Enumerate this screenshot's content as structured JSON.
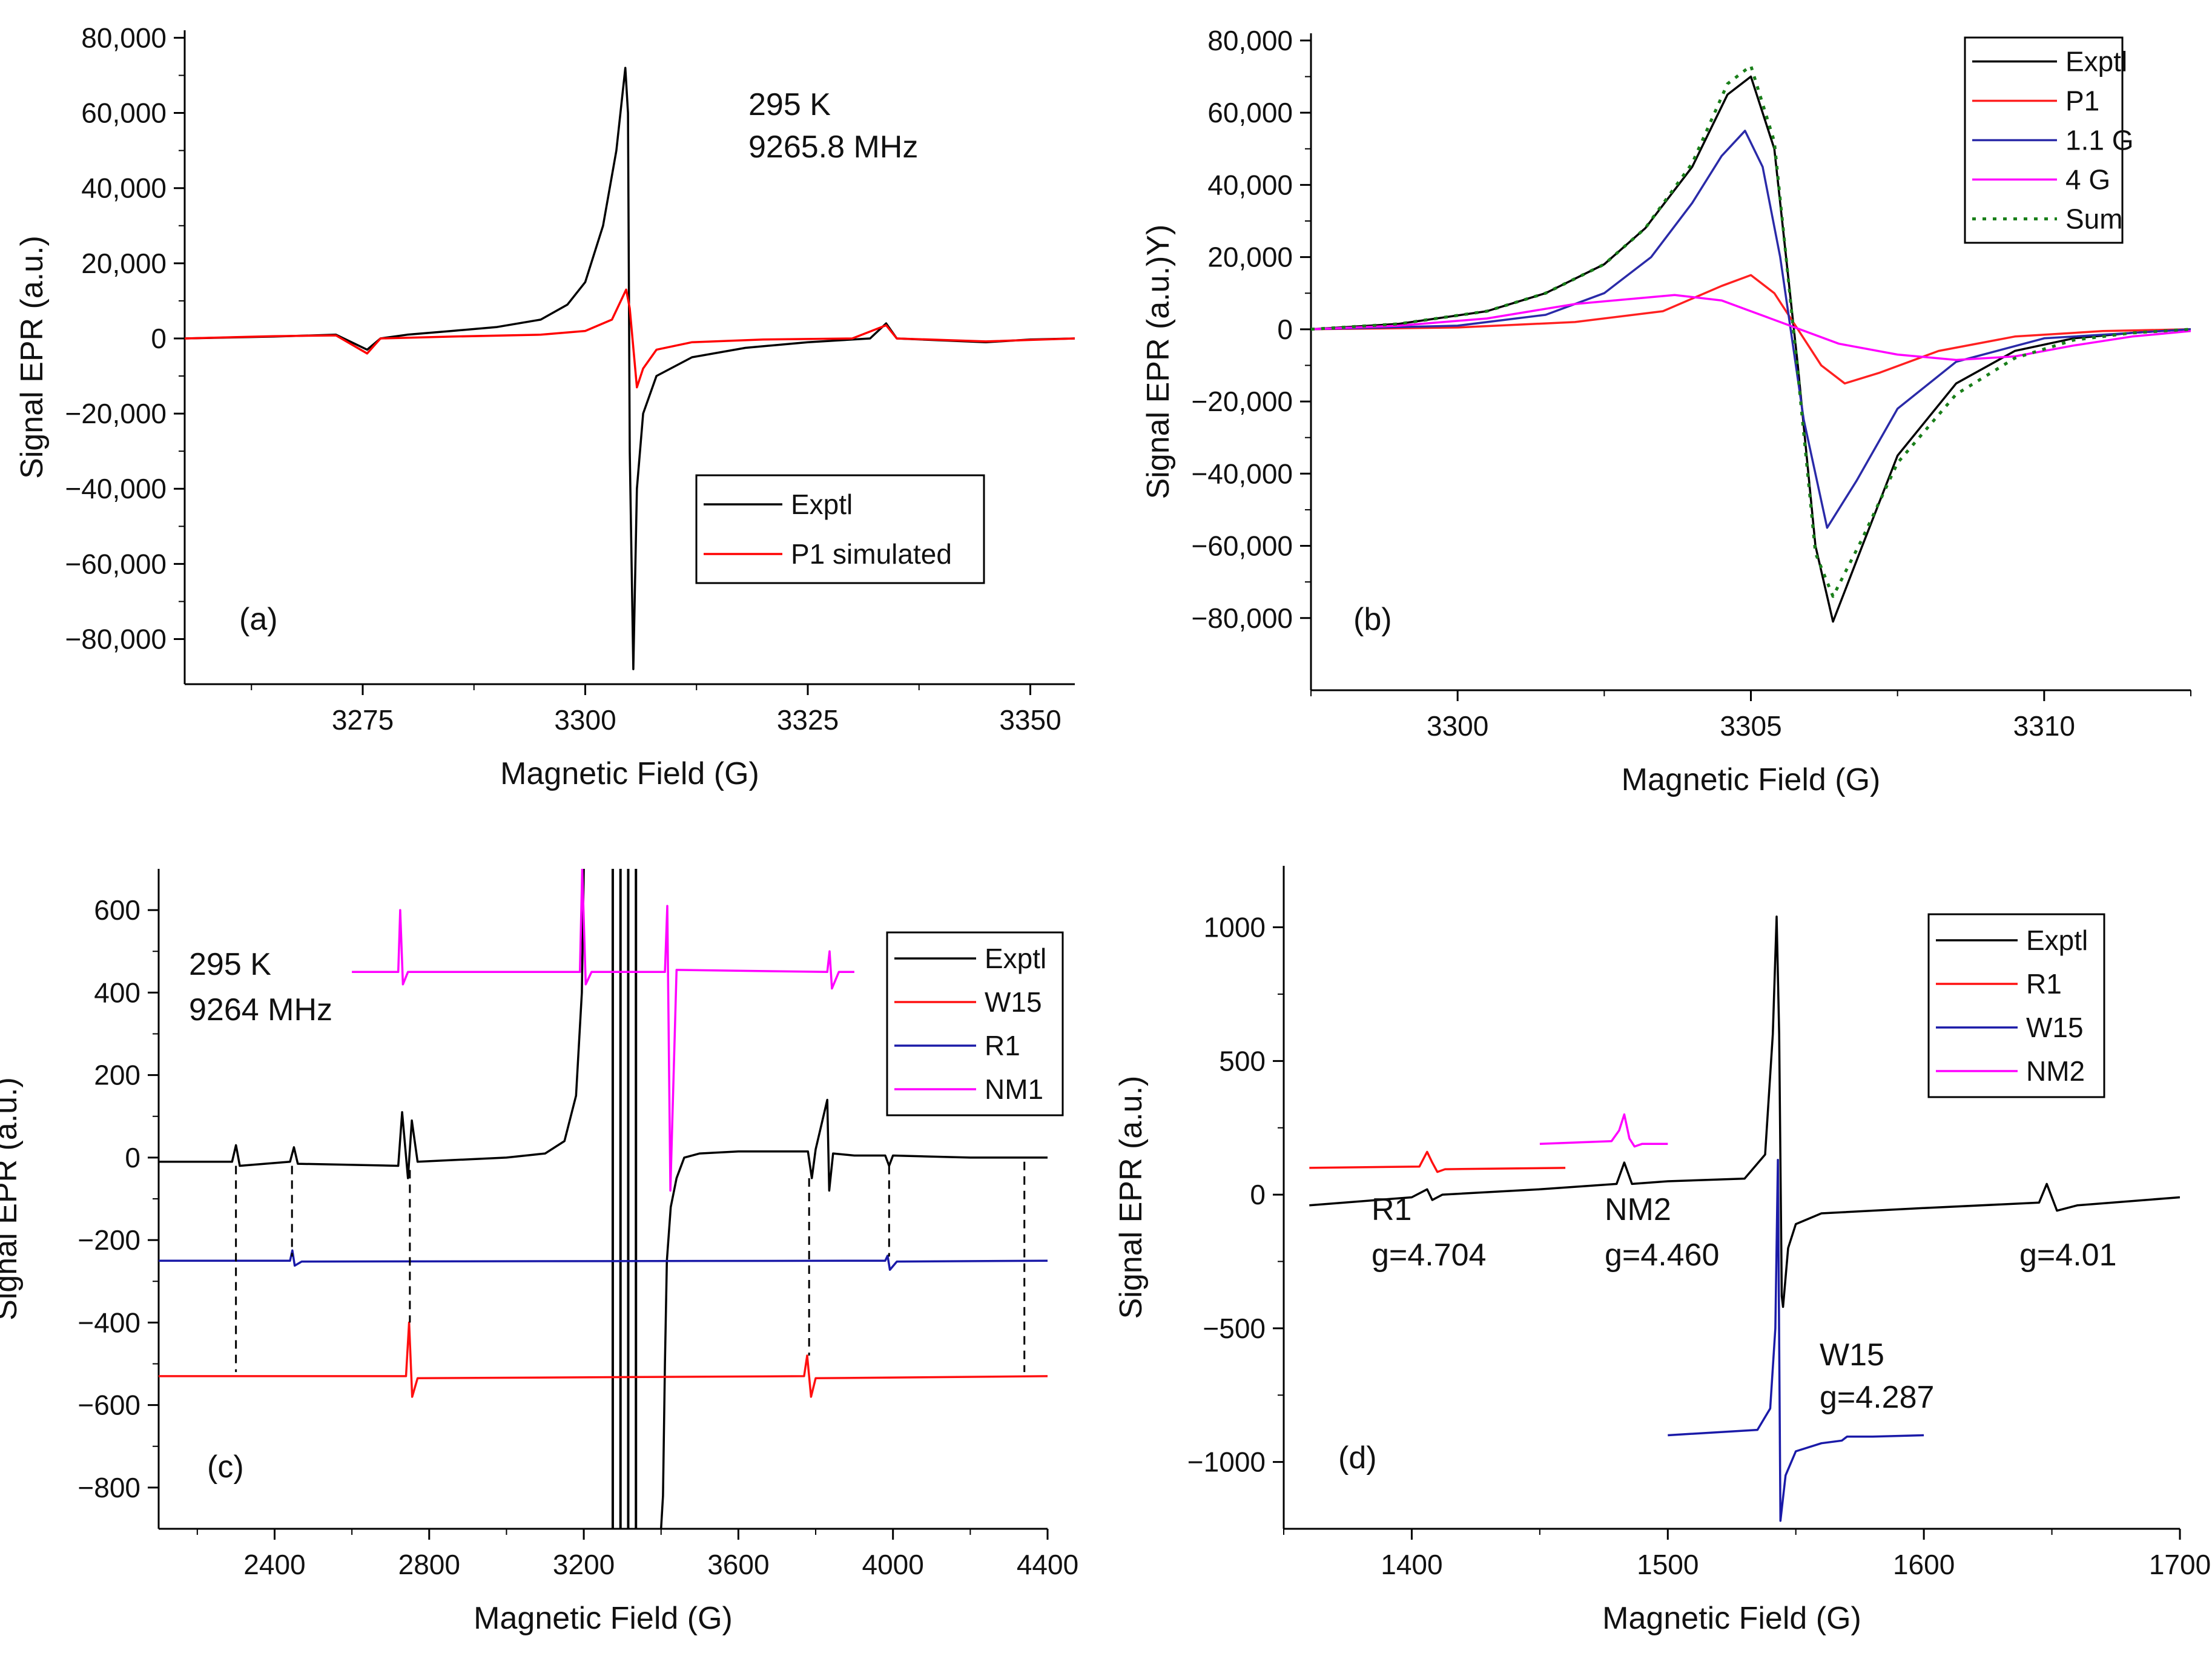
{
  "chart_data": [
    {
      "panel": "(a)",
      "type": "line",
      "xlabel": "Magnetic Field (G)",
      "ylabel": "Signal EPR (a.u.)",
      "xlim": [
        3255,
        3355
      ],
      "ylim": [
        -92000,
        82000
      ],
      "xticks": [
        3275,
        3300,
        3325,
        3350
      ],
      "xtick_labels": [
        "3275",
        "3300",
        "3325",
        "3350"
      ],
      "yticks": [
        -80000,
        -60000,
        -40000,
        -20000,
        0,
        20000,
        40000,
        60000,
        80000
      ],
      "ytick_labels": [
        "−80,000",
        "−60,000",
        "−40,000",
        "−20,000",
        "0",
        "20,000",
        "40,000",
        "60,000",
        "80,000"
      ],
      "annotations": [
        {
          "text": "295 K"
        },
        {
          "text": "9265.8 MHz"
        },
        {
          "text": "(a)"
        }
      ],
      "legend": "bottom-right",
      "series": [
        {
          "name": "Exptl",
          "color": "#000000",
          "style": "solid",
          "x": [
            3255,
            3265,
            3272,
            3275.5,
            3277,
            3280,
            3285,
            3290,
            3295,
            3298,
            3300,
            3302,
            3303.5,
            3304.5,
            3304.8,
            3305,
            3305.4,
            3305.8,
            3306.5,
            3308,
            3312,
            3318,
            3325,
            3332,
            3333.8,
            3335,
            3340,
            3345,
            3350,
            3355
          ],
          "y": [
            0,
            500,
            1000,
            -3000,
            0,
            1000,
            2000,
            3000,
            5000,
            9000,
            15000,
            30000,
            50000,
            72000,
            60000,
            -30000,
            -88000,
            -40000,
            -20000,
            -10000,
            -5000,
            -2500,
            -1000,
            0,
            4000,
            0,
            -500,
            -1000,
            -300,
            0
          ]
        },
        {
          "name": "P1 simulated",
          "color": "#ff0000",
          "style": "solid",
          "x": [
            3255,
            3265,
            3272,
            3275.5,
            3277,
            3285,
            3295,
            3300,
            3303,
            3304.6,
            3305,
            3305.8,
            3306.5,
            3308,
            3312,
            3320,
            3330,
            3333.8,
            3335,
            3345,
            3355
          ],
          "y": [
            0,
            600,
            800,
            -4000,
            0,
            500,
            1000,
            2000,
            5000,
            13000,
            8000,
            -13000,
            -8000,
            -3000,
            -1000,
            -300,
            0,
            3500,
            0,
            -800,
            0
          ]
        }
      ]
    },
    {
      "panel": "(b)",
      "type": "line",
      "xlabel": "Magnetic Field (G)",
      "ylabel": "Signal EPR (a.u.)Y)",
      "xlim": [
        3297.5,
        3312.5
      ],
      "ylim": [
        -100000,
        82000
      ],
      "xticks": [
        3300,
        3305,
        3310
      ],
      "xtick_labels": [
        "3300",
        "3305",
        "3310"
      ],
      "yticks": [
        -80000,
        -60000,
        -40000,
        -20000,
        0,
        20000,
        40000,
        60000,
        80000
      ],
      "ytick_labels": [
        "−80,000",
        "−60,000",
        "−40,000",
        "−20,000",
        "0",
        "20,000",
        "40,000",
        "60,000",
        "80,000"
      ],
      "annotations": [
        {
          "text": "(b)"
        }
      ],
      "legend": "top-right",
      "series": [
        {
          "name": "Exptl",
          "color": "#000000",
          "style": "solid",
          "x": [
            3297.5,
            3299,
            3300.5,
            3301.5,
            3302.5,
            3303.2,
            3304,
            3304.6,
            3305,
            3305.4,
            3305.8,
            3306.1,
            3306.4,
            3306.9,
            3307.5,
            3308.5,
            3309.5,
            3310.5,
            3311.5,
            3312.5
          ],
          "y": [
            0,
            1500,
            5000,
            10000,
            18000,
            28000,
            45000,
            65000,
            70000,
            50000,
            -10000,
            -60000,
            -81000,
            -60000,
            -35000,
            -15000,
            -6000,
            -2500,
            -1000,
            0
          ]
        },
        {
          "name": "P1",
          "color": "#ff2020",
          "style": "solid",
          "x": [
            3297.5,
            3300,
            3302,
            3303.5,
            3304.5,
            3305,
            3305.4,
            3305.8,
            3306.2,
            3306.6,
            3307.2,
            3308.2,
            3309.5,
            3311,
            3312.5
          ],
          "y": [
            0,
            500,
            2000,
            5000,
            12000,
            15000,
            10000,
            0,
            -10000,
            -15000,
            -12000,
            -6000,
            -2000,
            -500,
            0
          ]
        },
        {
          "name": "1.1 G",
          "color": "#2a2aa8",
          "style": "solid",
          "x": [
            3297.5,
            3300,
            3301.5,
            3302.5,
            3303.3,
            3304,
            3304.5,
            3304.9,
            3305.2,
            3305.5,
            3305.9,
            3306.3,
            3306.8,
            3307.5,
            3308.5,
            3310,
            3312.5
          ],
          "y": [
            0,
            1000,
            4000,
            10000,
            20000,
            35000,
            48000,
            55000,
            45000,
            20000,
            -25000,
            -55000,
            -42000,
            -22000,
            -9000,
            -2500,
            0
          ]
        },
        {
          "name": "4 G",
          "color": "#ff00ff",
          "style": "solid",
          "x": [
            3297.5,
            3299,
            3300.5,
            3302,
            3303.7,
            3304.5,
            3305.5,
            3306.5,
            3307.5,
            3308.5,
            3309.5,
            3310.5,
            3311.5,
            3312.5
          ],
          "y": [
            0,
            1000,
            3000,
            7000,
            9500,
            8000,
            2000,
            -4000,
            -7000,
            -8500,
            -7500,
            -4500,
            -2000,
            -500
          ]
        },
        {
          "name": "Sum",
          "color": "#1a7f1a",
          "style": "dotted",
          "x": [
            3297.5,
            3299,
            3300.5,
            3301.5,
            3302.5,
            3303.2,
            3304,
            3304.6,
            3305,
            3305.4,
            3305.8,
            3306.1,
            3306.4,
            3306.9,
            3307.5,
            3308.5,
            3309.5,
            3310.5,
            3311.5,
            3312.5
          ],
          "y": [
            0,
            1500,
            5000,
            10000,
            18000,
            28000,
            46000,
            68000,
            73000,
            52000,
            -12000,
            -62000,
            -74000,
            -58000,
            -37000,
            -18000,
            -8000,
            -3000,
            -1000,
            0
          ]
        }
      ]
    },
    {
      "panel": "(c)",
      "type": "line",
      "xlabel": "Magnetic Field (G)",
      "ylabel": "Signal EPR (a.u.)",
      "xlim": [
        2100,
        4400
      ],
      "ylim": [
        -900,
        700
      ],
      "xticks": [
        2400,
        2800,
        3200,
        3600,
        4000,
        4400
      ],
      "xtick_labels": [
        "2400",
        "2800",
        "3200",
        "3600",
        "4000",
        "4400"
      ],
      "yticks": [
        -800,
        -600,
        -400,
        -200,
        0,
        200,
        400,
        600
      ],
      "ytick_labels": [
        "−800",
        "−600",
        "−400",
        "−200",
        "0",
        "200",
        "400",
        "600"
      ],
      "annotations": [
        {
          "text": "295 K"
        },
        {
          "text": "9264 MHz"
        },
        {
          "text": "(c)"
        }
      ],
      "legend": "top-right",
      "series": [
        {
          "name": "Exptl",
          "color": "#000000",
          "style": "solid",
          "x": [
            2100,
            2290,
            2300,
            2310,
            2440,
            2450,
            2460,
            2720,
            2730,
            2745,
            2755,
            2770,
            3000,
            3100,
            3150,
            3180,
            3195,
            3200
          ],
          "y": [
            -10,
            -10,
            30,
            -20,
            -10,
            25,
            -15,
            -20,
            110,
            -50,
            90,
            -10,
            0,
            10,
            40,
            150,
            400,
            700
          ]
        },
        {
          "name": "Exptl",
          "color": "#000000",
          "style": "solid",
          "x": [
            3400,
            3405,
            3410,
            3415,
            3425,
            3440,
            3460,
            3500,
            3600,
            3700,
            3780,
            3790,
            3800,
            3830,
            3835,
            3845,
            3900,
            3980,
            3990,
            4000,
            4200,
            4340,
            4400
          ],
          "y": [
            -900,
            -820,
            -500,
            -250,
            -120,
            -50,
            0,
            10,
            15,
            15,
            15,
            -50,
            20,
            140,
            -80,
            10,
            5,
            5,
            -20,
            5,
            0,
            0,
            0
          ]
        },
        {
          "name": "W15",
          "color": "#ff1010",
          "style": "solid",
          "x": [
            2100,
            2740,
            2748,
            2756,
            2770,
            3770,
            3778,
            3788,
            3800,
            4400
          ],
          "y": [
            -530,
            -530,
            -400,
            -580,
            -535,
            -530,
            -480,
            -580,
            -535,
            -530
          ]
        },
        {
          "name": "R1",
          "color": "#1a1aa8",
          "style": "solid",
          "x": [
            2100,
            2440,
            2446,
            2452,
            2470,
            3980,
            3986,
            3992,
            4010,
            4400
          ],
          "y": [
            -250,
            -250,
            -225,
            -262,
            -252,
            -250,
            -238,
            -272,
            -252,
            -250
          ]
        },
        {
          "name": "NM1",
          "color": "#ff00ff",
          "style": "solid",
          "x": [
            2600,
            2720,
            2725,
            2732,
            2745,
            3190,
            3196,
            3205,
            3220,
            3410,
            3416,
            3424,
            3440,
            3830,
            3836,
            3842,
            3860,
            3900
          ],
          "y": [
            450,
            450,
            600,
            420,
            450,
            450,
            700,
            420,
            450,
            450,
            610,
            -80,
            455,
            450,
            500,
            410,
            450,
            450
          ]
        }
      ],
      "vertical_lines_x": [
        3275,
        3295,
        3315,
        3335
      ]
    },
    {
      "panel": "(d)",
      "type": "line",
      "xlabel": "Magnetic Field (G)",
      "ylabel": "Signal EPR (a.u.)",
      "xlim": [
        1350,
        1700
      ],
      "ylim": [
        -1250,
        1230
      ],
      "xticks": [
        1400,
        1500,
        1600,
        1700
      ],
      "xtick_labels": [
        "1400",
        "1500",
        "1600",
        "1700"
      ],
      "yticks": [
        -1000,
        -500,
        0,
        500,
        1000
      ],
      "ytick_labels": [
        "−1000",
        "−500",
        "0",
        "500",
        "1000"
      ],
      "annotations": [
        {
          "text": "R1"
        },
        {
          "text": "g=4.704"
        },
        {
          "text": "NM2"
        },
        {
          "text": "g=4.460"
        },
        {
          "text": "W15"
        },
        {
          "text": "g=4.287"
        },
        {
          "text": "g=4.01"
        },
        {
          "text": "(d)"
        }
      ],
      "legend": "top-right",
      "series": [
        {
          "name": "Exptl",
          "color": "#000000",
          "style": "solid",
          "x": [
            1360,
            1400,
            1406,
            1408,
            1412,
            1450,
            1480,
            1483,
            1486,
            1500,
            1530,
            1538,
            1541,
            1542.5,
            1543.5,
            1544.5,
            1545,
            1547,
            1550,
            1560,
            1600,
            1645,
            1648,
            1652,
            1660,
            1700
          ],
          "y": [
            -40,
            -10,
            20,
            -20,
            0,
            20,
            40,
            120,
            40,
            50,
            60,
            150,
            600,
            1040,
            600,
            -380,
            -420,
            -200,
            -110,
            -70,
            -50,
            -30,
            40,
            -60,
            -40,
            -10
          ]
        },
        {
          "name": "R1",
          "color": "#ff1010",
          "style": "solid",
          "x": [
            1360,
            1403,
            1406,
            1408,
            1410,
            1413,
            1460
          ],
          "y": [
            100,
            105,
            160,
            120,
            85,
            95,
            100
          ]
        },
        {
          "name": "W15",
          "color": "#1a1aa8",
          "style": "solid",
          "x": [
            1500,
            1535,
            1540,
            1542,
            1543,
            1544,
            1546,
            1550,
            1560,
            1568,
            1570,
            1580,
            1600
          ],
          "y": [
            -900,
            -880,
            -800,
            -500,
            130,
            -1220,
            -1050,
            -960,
            -930,
            -920,
            -905,
            -905,
            -900
          ]
        },
        {
          "name": "NM2",
          "color": "#ff00ff",
          "style": "solid",
          "x": [
            1450,
            1478,
            1481,
            1483,
            1485,
            1487,
            1490,
            1500
          ],
          "y": [
            190,
            200,
            240,
            300,
            210,
            180,
            190,
            190
          ]
        }
      ],
      "dashed_links": [
        {
          "x": 2300,
          "y1": -20,
          "y2": -520
        },
        {
          "x": 2445,
          "y1": -20,
          "y2": -240
        },
        {
          "x": 2750,
          "y1": -30,
          "y2": -400
        },
        {
          "x": 3783,
          "y1": -50,
          "y2": -480
        },
        {
          "x": 3990,
          "y1": -20,
          "y2": -240
        },
        {
          "x": 4340,
          "y1": -10,
          "y2": -520
        }
      ]
    }
  ]
}
